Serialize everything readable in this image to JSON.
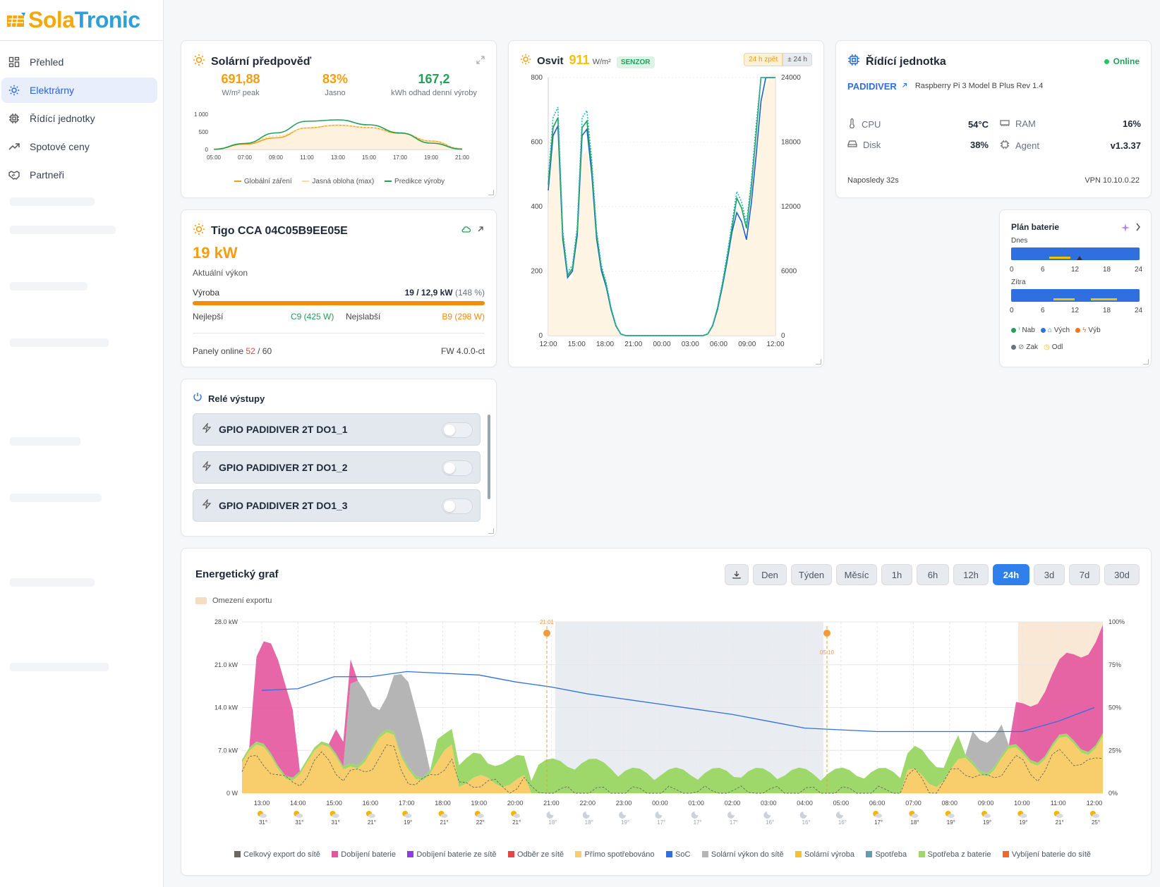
{
  "brand": {
    "part1": "Sola",
    "part2": "Tronic"
  },
  "sidebar": {
    "items": [
      {
        "label": "Přehled",
        "icon": "dashboard-icon"
      },
      {
        "label": "Elektrárny",
        "icon": "sun-icon",
        "active": true
      },
      {
        "label": "Řídící jednotky",
        "icon": "chip-icon"
      },
      {
        "label": "Spotové ceny",
        "icon": "trend-icon"
      },
      {
        "label": "Partneři",
        "icon": "handshake-icon"
      }
    ]
  },
  "forecast": {
    "title": "Solární předpověď",
    "stats": [
      {
        "value": "691,88",
        "label": "W/m² peak",
        "color": "#f59e0b"
      },
      {
        "value": "83%",
        "label": "Jasno",
        "color": "#f59e0b"
      },
      {
        "value": "167,2",
        "label": "kWh odhad denní výroby",
        "color": "#22a05a"
      }
    ],
    "legend": [
      "Globální záření",
      "Jasná obloha (max)",
      "Predikce výroby"
    ],
    "chart_data": {
      "type": "line",
      "x": [
        "05:00",
        "07:00",
        "09:00",
        "11:00",
        "13:00",
        "15:00",
        "17:00",
        "19:00",
        "21:00"
      ],
      "ylim": [
        0,
        1000
      ],
      "yticks": [
        "1 000",
        "500",
        "0"
      ],
      "series": [
        {
          "name": "Globální záření",
          "color": "#f59e0b",
          "values": [
            10,
            150,
            330,
            610,
            690,
            620,
            460,
            240,
            20
          ]
        },
        {
          "name": "Jasná obloha (max)",
          "color": "#fcd9a0",
          "values": [
            15,
            170,
            380,
            600,
            680,
            620,
            480,
            250,
            25
          ]
        },
        {
          "name": "Predikce výroby",
          "color": "#22a05a",
          "values": [
            5,
            170,
            470,
            800,
            840,
            700,
            470,
            180,
            10
          ]
        }
      ]
    }
  },
  "tigo": {
    "title": "Tigo CCA 04C05B9EE05E",
    "power": "19 kW",
    "power_label": "Aktuální výkon",
    "production_label": "Výroba",
    "production_value": "19 / 12,9 kW",
    "production_pct": "(148 %)",
    "progress": 1.0,
    "best_label": "Nejlepší",
    "best_value": "C9 (425 W)",
    "worst_label": "Nejslabší",
    "worst_value": "B9 (298 W)",
    "panels_label": "Panely online",
    "panels_online": "52",
    "panels_total": "/ 60",
    "fw": "FW 4.0.0-ct"
  },
  "irradiance": {
    "title": "Osvit",
    "value": "911",
    "unit": "W/m²",
    "badge": "SENZOR",
    "btn_back": "24 h zpět",
    "btn_range": "± 24 h",
    "chart_data": {
      "type": "line",
      "x": [
        "12:00",
        "15:00",
        "18:00",
        "21:00",
        "00:00",
        "03:00",
        "06:00",
        "09:00",
        "12:00"
      ],
      "ylim_left": [
        0,
        800
      ],
      "ylim_right": [
        0,
        24000
      ],
      "yticks_left": [
        "800",
        "600",
        "400",
        "200",
        "0"
      ],
      "yticks_right": [
        "24000",
        "18000",
        "12000",
        "6000",
        "0"
      ]
    }
  },
  "controller": {
    "title": "Řídící jednotka",
    "status": "Online",
    "name": "PADIDIVER",
    "model": "Raspberry Pi 3 Model B Plus Rev 1.4",
    "cpu_label": "CPU",
    "cpu_value": "54°C",
    "ram_label": "RAM",
    "ram_value": "16%",
    "disk_label": "Disk",
    "disk_value": "38%",
    "agent_label": "Agent",
    "agent_value": "v1.3.37",
    "last_seen": "Naposledy 32s",
    "vpn": "VPN 10.10.0.22"
  },
  "battery_plan": {
    "title": "Plán baterie",
    "today": "Dnes",
    "tomorrow": "Zítra",
    "ticks": [
      "0",
      "6",
      "12",
      "18",
      "24"
    ],
    "legend": [
      {
        "label": "Nab",
        "color": "#22a05a"
      },
      {
        "label": "Vých",
        "color": "#2f6fe0"
      },
      {
        "label": "Výb",
        "color": "#f97316"
      },
      {
        "label": "Zak",
        "color": "#6b7280"
      },
      {
        "label": "Odl",
        "color": "#f5c000"
      }
    ]
  },
  "relays": {
    "title": "Relé výstupy",
    "items": [
      "GPIO PADIDIVER 2T DO1_1",
      "GPIO PADIDIVER 2T DO1_2",
      "GPIO PADIDIVER 2T DO1_3"
    ]
  },
  "energy": {
    "title": "Energetický graf",
    "period_buttons": [
      "Den",
      "Týden",
      "Měsíc"
    ],
    "range_buttons": [
      "1h",
      "6h",
      "12h",
      "24h",
      "3d",
      "7d",
      "30d"
    ],
    "active_range": "24h",
    "export_limit": "Omezení exportu",
    "sunset_time": "21:01",
    "sunrise_time": "05:10",
    "chart_data": {
      "type": "area",
      "x": [
        "13:00",
        "14:00",
        "15:00",
        "16:00",
        "17:00",
        "18:00",
        "19:00",
        "20:00",
        "21:00",
        "22:00",
        "23:00",
        "00:00",
        "01:00",
        "02:00",
        "03:00",
        "04:00",
        "05:00",
        "06:00",
        "07:00",
        "08:00",
        "09:00",
        "10:00",
        "11:00",
        "12:00"
      ],
      "temps": [
        "31°",
        "31°",
        "31°",
        "21°",
        "19°",
        "21°",
        "22°",
        "21°",
        "18°",
        "18°",
        "19°",
        "17°",
        "17°",
        "17°",
        "16°",
        "16°",
        "16°",
        "17°",
        "18°",
        "19°",
        "19°",
        "19°",
        "21°",
        "25°"
      ],
      "yticks_left": [
        "28.0 kW",
        "21.0 kW",
        "14.0 kW",
        "7.0 kW",
        "0 W"
      ],
      "yticks_right": [
        "100%",
        "75%",
        "50%",
        "25%",
        "0%"
      ],
      "ylim": [
        0,
        28
      ],
      "soc": [
        60,
        61,
        68,
        68,
        71,
        70,
        69,
        65,
        62,
        58,
        55,
        52,
        49,
        46,
        42,
        38,
        37,
        36,
        36,
        36,
        36,
        36,
        42,
        50
      ]
    },
    "legend": [
      {
        "label": "Celkový export do sítě",
        "color": "#6b6760"
      },
      {
        "label": "Dobíjení baterie",
        "color": "#e3559d"
      },
      {
        "label": "Dobíjení baterie ze sítě",
        "color": "#8b3fe0"
      },
      {
        "label": "Odběr ze sítě",
        "color": "#e44545"
      },
      {
        "label": "Přímo spotřebováno",
        "color": "#f8cd6b"
      },
      {
        "label": "SoC",
        "color": "#2f6fe0"
      },
      {
        "label": "Solární výkon do sítě",
        "color": "#b5b5b5"
      },
      {
        "label": "Solární výroba",
        "color": "#f6c12a"
      },
      {
        "label": "Spotřeba",
        "color": "#5e9eb3"
      },
      {
        "label": "Spotřeba z baterie",
        "color": "#9ed86b"
      },
      {
        "label": "Vybíjení baterie do sítě",
        "color": "#ef6a25"
      }
    ]
  }
}
